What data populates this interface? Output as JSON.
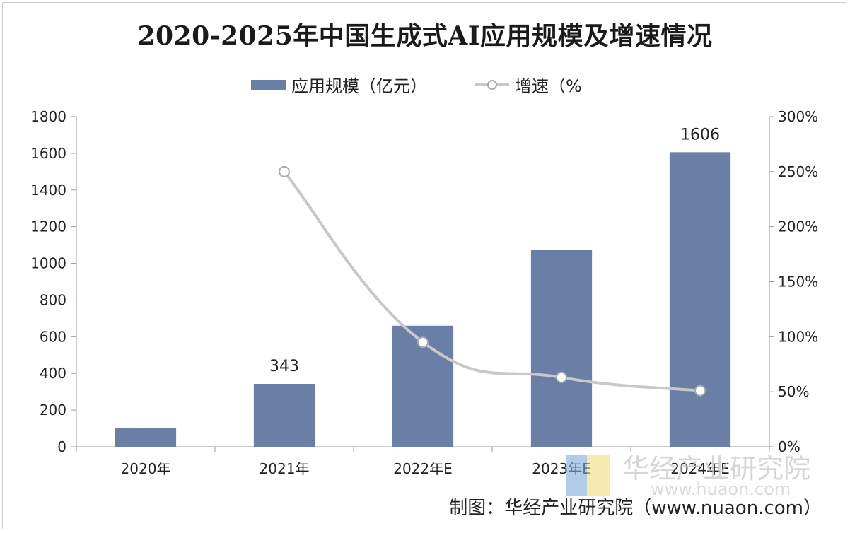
{
  "title": "2020-2025年中国生成式AI应用规模及增速情况",
  "legend": {
    "bar_label": "应用规模（亿元）",
    "line_label": "增速（%"
  },
  "source": "制图：华经产业研究院（www.nuaon.com）",
  "watermark": {
    "text": "华经产业研究院",
    "url": "www.huaon.com"
  },
  "colors": {
    "bar": "#6a7fa6",
    "line": "#c8c8c8",
    "marker_fill": "#ffffff"
  },
  "chart_data": {
    "type": "bar",
    "categories": [
      "2020年",
      "2021年",
      "2022年E",
      "2023年E",
      "2024年E"
    ],
    "series": [
      {
        "name": "应用规模（亿元）",
        "type": "bar",
        "axis": "left",
        "values": [
          100,
          343,
          660,
          1075,
          1606
        ]
      },
      {
        "name": "增速（%",
        "type": "line",
        "axis": "right",
        "values": [
          null,
          250,
          95,
          63,
          51
        ]
      }
    ],
    "data_labels": [
      null,
      "343",
      null,
      null,
      "1606"
    ],
    "y_left": {
      "ticks": [
        "0",
        "200",
        "400",
        "600",
        "800",
        "1000",
        "1200",
        "1400",
        "1600",
        "1800"
      ],
      "ylim": [
        0,
        1800
      ]
    },
    "y_right": {
      "ticks": [
        "0%",
        "50%",
        "100%",
        "150%",
        "200%",
        "250%",
        "300%"
      ],
      "ylim": [
        0,
        300
      ]
    },
    "legend_position": "top-center",
    "grid": false
  }
}
